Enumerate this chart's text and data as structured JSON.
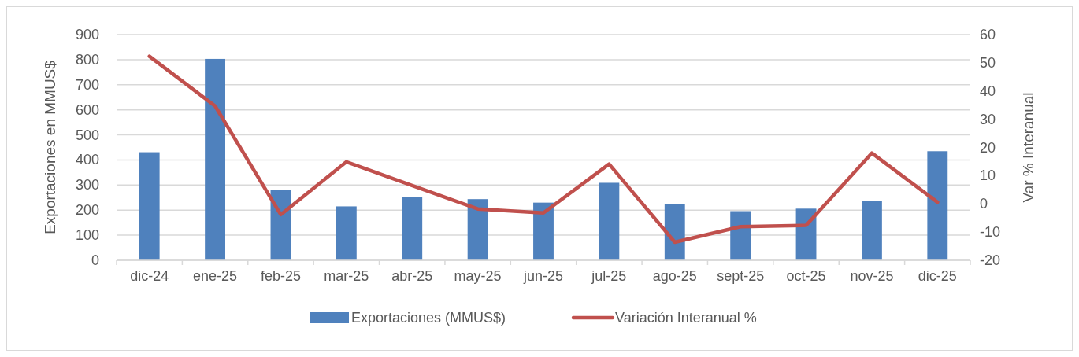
{
  "chart_data": {
    "type": "bar",
    "categories": [
      "dic-24",
      "ene-25",
      "feb-25",
      "mar-25",
      "abr-25",
      "may-25",
      "jun-25",
      "jul-25",
      "ago-25",
      "sept-25",
      "oct-25",
      "nov-25",
      "dic-25"
    ],
    "series": [
      {
        "name": "Exportaciones (MMUS$)",
        "color": "#4f81bd",
        "values": [
          431,
          803,
          280,
          215,
          253,
          244,
          230,
          309,
          225,
          196,
          206,
          237,
          435
        ]
      },
      {
        "name": "Variación Interanual %",
        "type": "line",
        "axis": "y2",
        "color": "#c0504d",
        "values": [
          52.3,
          34.7,
          -3.8,
          14.9,
          6.5,
          -1.8,
          -3.2,
          14.1,
          -13.6,
          -8.1,
          -7.6,
          18.0,
          0.6
        ]
      }
    ],
    "ylabel": "Exportaciones en MMUS$",
    "y2label": "Var % Interanual",
    "ylim": [
      0,
      900
    ],
    "yticks": [
      0,
      100,
      200,
      300,
      400,
      500,
      600,
      700,
      800,
      900
    ],
    "y2lim": [
      -20,
      60
    ],
    "y2ticks": [
      -20,
      -10,
      0,
      10,
      20,
      30,
      40,
      50,
      60
    ],
    "grid": "y",
    "legend": "bottom",
    "marker": "none",
    "line_style": "solid"
  }
}
